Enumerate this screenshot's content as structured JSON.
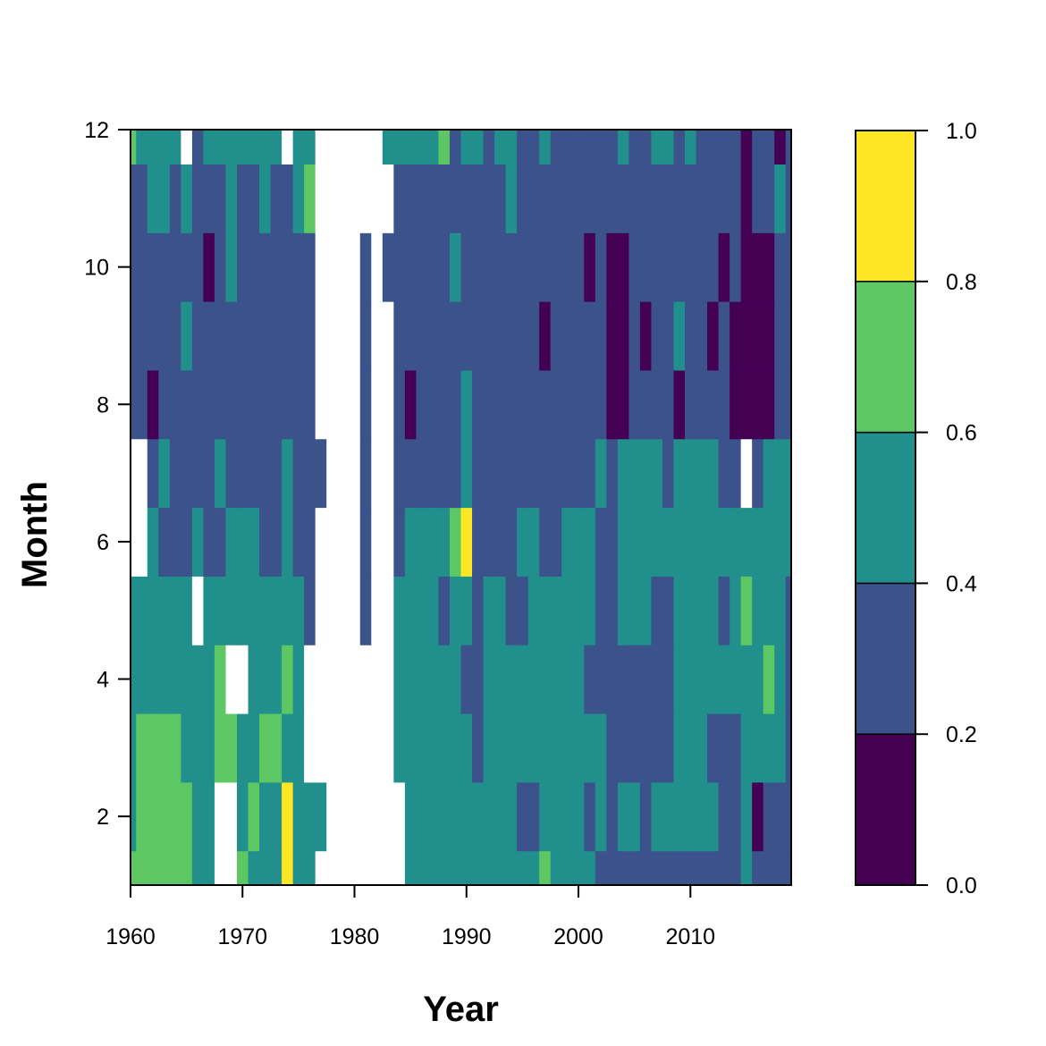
{
  "chart_data": {
    "type": "heatmap",
    "title": "",
    "xlabel": "Year",
    "ylabel": "Month",
    "xlim": [
      1960,
      2019
    ],
    "ylim": [
      1,
      12
    ],
    "x_ticks": [
      "1960",
      "1970",
      "1980",
      "1990",
      "2000",
      "2010"
    ],
    "y_ticks": [
      "2",
      "4",
      "6",
      "8",
      "10",
      "12"
    ],
    "legend": {
      "position": "right",
      "levels": [
        0.0,
        0.2,
        0.4,
        0.6,
        0.8,
        1.0
      ],
      "tick_labels": [
        "0.0",
        "0.2",
        "0.4",
        "0.6",
        "0.8",
        "1.0"
      ],
      "colors": [
        "#440154",
        "#3b528b",
        "#21908c",
        "#5dc863",
        "#fde725"
      ]
    },
    "missing_color": "#ffffff",
    "years": [
      1960,
      1961,
      1962,
      1963,
      1964,
      1965,
      1966,
      1967,
      1968,
      1969,
      1970,
      1971,
      1972,
      1973,
      1974,
      1975,
      1976,
      1977,
      1978,
      1979,
      1980,
      1981,
      1982,
      1983,
      1984,
      1985,
      1986,
      1987,
      1988,
      1989,
      1990,
      1991,
      1992,
      1993,
      1994,
      1995,
      1996,
      1997,
      1998,
      1999,
      2000,
      2001,
      2002,
      2003,
      2004,
      2005,
      2006,
      2007,
      2008,
      2009,
      2010,
      2011,
      2012,
      2013,
      2014,
      2015,
      2016,
      2017,
      2018,
      2019
    ],
    "months": [
      1,
      2,
      3,
      4,
      5,
      6,
      7,
      8,
      9,
      10,
      11,
      12
    ],
    "band_index_grid": [
      [
        3,
        3,
        3,
        3,
        3,
        3,
        2,
        2,
        -1,
        -1,
        3,
        2,
        2,
        2,
        4,
        2,
        2,
        -1,
        -1,
        -1,
        -1,
        -1,
        -1,
        -1,
        -1,
        2,
        2,
        2,
        2,
        2,
        2,
        2,
        2,
        2,
        2,
        2,
        2,
        3,
        2,
        2,
        2,
        2,
        1,
        1,
        1,
        1,
        1,
        1,
        1,
        1,
        1,
        1,
        1,
        1,
        1,
        2,
        1,
        1,
        1,
        1
      ],
      [
        2,
        3,
        3,
        3,
        3,
        3,
        2,
        2,
        -1,
        -1,
        2,
        3,
        2,
        2,
        4,
        2,
        2,
        2,
        -1,
        -1,
        -1,
        -1,
        -1,
        -1,
        -1,
        2,
        2,
        2,
        2,
        2,
        2,
        2,
        2,
        2,
        2,
        1,
        1,
        2,
        2,
        2,
        2,
        1,
        2,
        1,
        2,
        2,
        1,
        2,
        2,
        2,
        2,
        2,
        2,
        1,
        1,
        2,
        0,
        1,
        1,
        1
      ],
      [
        2,
        3,
        3,
        3,
        3,
        2,
        2,
        2,
        3,
        3,
        2,
        2,
        3,
        3,
        2,
        2,
        -1,
        -1,
        -1,
        -1,
        -1,
        -1,
        -1,
        -1,
        2,
        2,
        2,
        2,
        2,
        2,
        2,
        1,
        2,
        2,
        2,
        2,
        2,
        2,
        2,
        2,
        2,
        2,
        2,
        1,
        1,
        1,
        1,
        1,
        1,
        2,
        2,
        2,
        1,
        1,
        1,
        2,
        2,
        2,
        2,
        1
      ],
      [
        2,
        2,
        2,
        2,
        2,
        2,
        2,
        2,
        3,
        -1,
        -1,
        2,
        2,
        2,
        3,
        2,
        -1,
        -1,
        -1,
        -1,
        -1,
        -1,
        -1,
        -1,
        2,
        2,
        2,
        2,
        2,
        2,
        1,
        1,
        2,
        2,
        2,
        2,
        2,
        2,
        2,
        2,
        2,
        1,
        1,
        1,
        1,
        1,
        1,
        1,
        1,
        2,
        2,
        2,
        2,
        2,
        2,
        2,
        2,
        3,
        2,
        1
      ],
      [
        2,
        2,
        2,
        2,
        2,
        2,
        -1,
        2,
        2,
        2,
        2,
        2,
        2,
        2,
        2,
        2,
        1,
        -1,
        -1,
        -1,
        -1,
        1,
        -1,
        -1,
        2,
        2,
        2,
        2,
        1,
        2,
        2,
        1,
        2,
        2,
        1,
        1,
        2,
        2,
        2,
        2,
        2,
        2,
        1,
        1,
        2,
        2,
        2,
        1,
        1,
        2,
        2,
        2,
        2,
        1,
        2,
        3,
        2,
        2,
        2,
        1
      ],
      [
        -1,
        -1,
        2,
        1,
        1,
        1,
        2,
        1,
        1,
        2,
        2,
        2,
        1,
        1,
        2,
        1,
        1,
        -1,
        -1,
        -1,
        -1,
        1,
        -1,
        -1,
        1,
        2,
        2,
        2,
        2,
        3,
        4,
        1,
        1,
        1,
        1,
        2,
        2,
        1,
        1,
        2,
        2,
        2,
        1,
        1,
        2,
        2,
        2,
        2,
        2,
        2,
        2,
        2,
        2,
        2,
        2,
        2,
        2,
        2,
        2,
        2
      ],
      [
        -1,
        -1,
        1,
        2,
        1,
        1,
        1,
        1,
        2,
        1,
        1,
        1,
        1,
        1,
        2,
        1,
        1,
        1,
        -1,
        -1,
        -1,
        1,
        -1,
        -1,
        1,
        1,
        1,
        1,
        1,
        1,
        2,
        1,
        1,
        1,
        1,
        1,
        1,
        1,
        1,
        1,
        1,
        1,
        2,
        1,
        2,
        2,
        2,
        2,
        1,
        2,
        2,
        2,
        2,
        1,
        1,
        -1,
        1,
        2,
        2,
        2
      ],
      [
        1,
        1,
        0,
        1,
        1,
        1,
        1,
        1,
        1,
        1,
        1,
        1,
        1,
        1,
        1,
        1,
        1,
        -1,
        -1,
        -1,
        -1,
        1,
        -1,
        -1,
        1,
        0,
        1,
        1,
        1,
        1,
        2,
        1,
        1,
        1,
        1,
        1,
        1,
        1,
        1,
        1,
        1,
        1,
        1,
        0,
        0,
        1,
        1,
        1,
        1,
        0,
        1,
        1,
        1,
        1,
        0,
        0,
        0,
        0,
        1,
        1
      ],
      [
        1,
        1,
        1,
        1,
        1,
        2,
        1,
        1,
        1,
        1,
        1,
        1,
        1,
        1,
        1,
        1,
        1,
        -1,
        -1,
        -1,
        -1,
        1,
        -1,
        -1,
        1,
        1,
        1,
        1,
        1,
        1,
        1,
        1,
        1,
        1,
        1,
        1,
        1,
        0,
        1,
        1,
        1,
        1,
        1,
        0,
        0,
        1,
        0,
        1,
        1,
        2,
        1,
        1,
        0,
        1,
        0,
        0,
        0,
        0,
        1,
        1
      ],
      [
        1,
        1,
        1,
        1,
        1,
        1,
        1,
        0,
        1,
        2,
        1,
        1,
        1,
        1,
        1,
        1,
        1,
        -1,
        -1,
        -1,
        -1,
        1,
        -1,
        1,
        1,
        1,
        1,
        1,
        1,
        2,
        1,
        1,
        1,
        1,
        1,
        1,
        1,
        1,
        1,
        1,
        1,
        0,
        1,
        0,
        0,
        1,
        1,
        1,
        1,
        1,
        1,
        1,
        1,
        0,
        1,
        0,
        0,
        0,
        1,
        1
      ],
      [
        1,
        1,
        2,
        2,
        1,
        2,
        1,
        1,
        1,
        2,
        1,
        1,
        2,
        1,
        1,
        2,
        3,
        -1,
        -1,
        -1,
        -1,
        -1,
        -1,
        -1,
        1,
        1,
        1,
        1,
        1,
        1,
        1,
        1,
        1,
        1,
        2,
        1,
        1,
        1,
        1,
        1,
        1,
        1,
        1,
        1,
        1,
        1,
        1,
        1,
        1,
        1,
        1,
        1,
        1,
        1,
        1,
        0,
        1,
        1,
        2,
        1
      ],
      [
        3,
        2,
        2,
        2,
        2,
        -1,
        1,
        2,
        2,
        2,
        2,
        2,
        2,
        2,
        -1,
        2,
        2,
        -1,
        -1,
        -1,
        -1,
        -1,
        -1,
        2,
        2,
        2,
        2,
        2,
        3,
        1,
        2,
        2,
        1,
        2,
        2,
        1,
        1,
        2,
        1,
        1,
        1,
        1,
        1,
        1,
        2,
        1,
        1,
        2,
        2,
        1,
        2,
        1,
        1,
        1,
        1,
        0,
        1,
        1,
        0,
        1
      ]
    ]
  }
}
